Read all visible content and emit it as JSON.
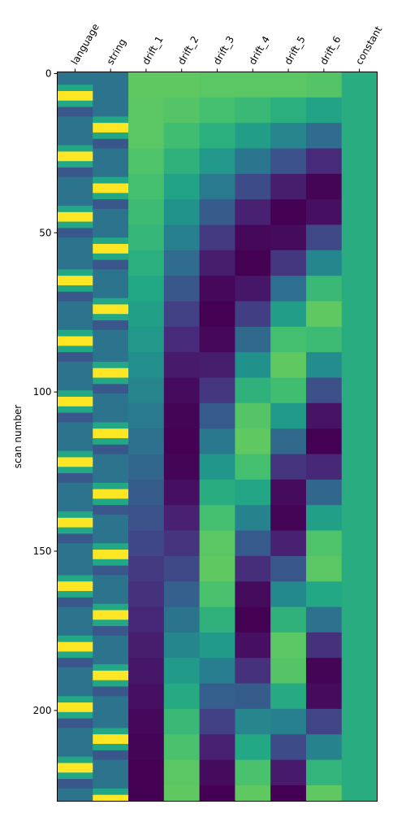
{
  "chart_data": {
    "type": "heatmap",
    "colormap": "viridis",
    "ylabel": "scan number",
    "ylim": [
      -0.5,
      228.5
    ],
    "yticks": [
      0,
      50,
      100,
      150,
      200
    ],
    "series": [
      {
        "name": "language",
        "bins": [
          -0.5,
          3.5,
          5.5,
          8.5,
          10.5,
          13.5,
          22.5,
          24.5,
          27.5,
          29.5,
          32.5,
          41.5,
          43.5,
          46.5,
          48.5,
          51.5,
          61.5,
          63.5,
          66.5,
          68.5,
          71.5,
          80.5,
          82.5,
          85.5,
          87.5,
          90.5,
          99.5,
          101.5,
          104.5,
          106.5,
          109.5,
          118.5,
          120.5,
          123.5,
          125.5,
          128.5,
          137.5,
          139.5,
          142.5,
          144.5,
          147.5,
          157.5,
          159.5,
          162.5,
          164.5,
          167.5,
          176.5,
          178.5,
          181.5,
          183.5,
          186.5,
          195.5,
          197.5,
          200.5,
          202.5,
          205.5,
          214.5,
          216.5,
          219.5,
          221.5,
          224.5,
          228.5
        ],
        "values": [
          0.38,
          0.6,
          1,
          0.6,
          0.27,
          0.38,
          0.6,
          1,
          0.6,
          0.27,
          0.38,
          0.6,
          1,
          0.6,
          0.27,
          0.38,
          0.6,
          1,
          0.6,
          0.27,
          0.38,
          0.6,
          1,
          0.6,
          0.27,
          0.38,
          0.6,
          1,
          0.6,
          0.27,
          0.38,
          0.6,
          1,
          0.6,
          0.27,
          0.38,
          0.6,
          1,
          0.6,
          0.27,
          0.38,
          0.6,
          1,
          0.6,
          0.27,
          0.38,
          0.6,
          1,
          0.6,
          0.27,
          0.38,
          0.6,
          1,
          0.6,
          0.27,
          0.38,
          0.6,
          1,
          0.6,
          0.27,
          0.38
        ]
      },
      {
        "name": "string",
        "bins": [
          -0.5,
          13.5,
          15.5,
          18.5,
          20.5,
          23.5,
          32.5,
          34.5,
          37.5,
          39.5,
          42.5,
          51.5,
          53.5,
          56.5,
          58.5,
          61.5,
          70.5,
          72.5,
          75.5,
          77.5,
          80.5,
          90.5,
          92.5,
          95.5,
          97.5,
          100.5,
          109.5,
          111.5,
          114.5,
          116.5,
          119.5,
          128.5,
          130.5,
          133.5,
          135.5,
          138.5,
          147.5,
          149.5,
          152.5,
          154.5,
          157.5,
          166.5,
          168.5,
          171.5,
          173.5,
          176.5,
          185.5,
          187.5,
          190.5,
          192.5,
          195.5,
          205.5,
          207.5,
          210.5,
          212.5,
          215.5,
          224.5,
          226.5,
          228.5
        ],
        "values": [
          0.38,
          0.6,
          1,
          0.6,
          0.27,
          0.38,
          0.6,
          1,
          0.6,
          0.27,
          0.38,
          0.6,
          1,
          0.6,
          0.27,
          0.38,
          0.6,
          1,
          0.6,
          0.27,
          0.38,
          0.6,
          1,
          0.6,
          0.27,
          0.38,
          0.6,
          1,
          0.6,
          0.27,
          0.38,
          0.6,
          1,
          0.6,
          0.27,
          0.38,
          0.6,
          1,
          0.6,
          0.27,
          0.38,
          0.6,
          1,
          0.6,
          0.27,
          0.38,
          0.6,
          1,
          0.6,
          0.27,
          0.38,
          0.6,
          1,
          0.6,
          0.27,
          0.38,
          0.6,
          1
        ]
      },
      {
        "name": "drift_1",
        "bins": [
          -0.5,
          7.5,
          15.5,
          23.5,
          31.5,
          39.5,
          47.5,
          55.5,
          63.5,
          71.5,
          79.5,
          87.5,
          95.5,
          103.5,
          111.5,
          119.5,
          127.5,
          135.5,
          143.5,
          151.5,
          159.5,
          167.5,
          175.5,
          183.5,
          191.5,
          199.5,
          207.5,
          215.5,
          223.5,
          228.5
        ],
        "values": [
          0.75,
          0.74,
          0.74,
          0.72,
          0.7,
          0.68,
          0.66,
          0.63,
          0.6,
          0.56,
          0.53,
          0.49,
          0.45,
          0.41,
          0.37,
          0.33,
          0.29,
          0.25,
          0.21,
          0.17,
          0.14,
          0.11,
          0.08,
          0.06,
          0.04,
          0.02,
          0.01,
          0,
          0
        ]
      },
      {
        "name": "drift_2",
        "bins": [
          -0.5,
          7.5,
          15.5,
          23.5,
          31.5,
          39.5,
          47.5,
          55.5,
          63.5,
          71.5,
          79.5,
          87.5,
          95.5,
          103.5,
          111.5,
          119.5,
          127.5,
          135.5,
          143.5,
          151.5,
          159.5,
          167.5,
          175.5,
          183.5,
          191.5,
          199.5,
          207.5,
          215.5,
          223.5,
          228.5
        ],
        "values": [
          0.75,
          0.73,
          0.69,
          0.64,
          0.58,
          0.51,
          0.43,
          0.35,
          0.27,
          0.19,
          0.12,
          0.07,
          0.03,
          0.01,
          0,
          0.01,
          0.04,
          0.09,
          0.15,
          0.22,
          0.3,
          0.38,
          0.46,
          0.54,
          0.61,
          0.67,
          0.71,
          0.74,
          0.75
        ]
      },
      {
        "name": "drift_3",
        "bins": [
          -0.5,
          7.5,
          15.5,
          23.5,
          31.5,
          39.5,
          47.5,
          55.5,
          63.5,
          71.5,
          79.5,
          87.5,
          95.5,
          103.5,
          111.5,
          119.5,
          127.5,
          135.5,
          143.5,
          151.5,
          159.5,
          167.5,
          175.5,
          183.5,
          191.5,
          199.5,
          207.5,
          215.5,
          223.5,
          228.5
        ],
        "values": [
          0.74,
          0.7,
          0.63,
          0.53,
          0.41,
          0.29,
          0.17,
          0.08,
          0.02,
          0,
          0.02,
          0.08,
          0.16,
          0.28,
          0.4,
          0.52,
          0.62,
          0.7,
          0.74,
          0.75,
          0.71,
          0.64,
          0.54,
          0.42,
          0.3,
          0.19,
          0.09,
          0.03,
          0
        ]
      },
      {
        "name": "drift_4",
        "bins": [
          -0.5,
          7.5,
          15.5,
          23.5,
          31.5,
          39.5,
          47.5,
          55.5,
          63.5,
          71.5,
          79.5,
          87.5,
          95.5,
          103.5,
          111.5,
          119.5,
          127.5,
          135.5,
          143.5,
          151.5,
          159.5,
          167.5,
          175.5,
          183.5,
          191.5,
          199.5,
          207.5,
          215.5,
          223.5,
          228.5
        ],
        "values": [
          0.74,
          0.67,
          0.55,
          0.39,
          0.23,
          0.09,
          0.02,
          0,
          0.06,
          0.18,
          0.34,
          0.5,
          0.64,
          0.73,
          0.75,
          0.7,
          0.59,
          0.44,
          0.28,
          0.13,
          0.03,
          0,
          0.04,
          0.14,
          0.29,
          0.45,
          0.6,
          0.71,
          0.75
        ]
      },
      {
        "name": "drift_5",
        "bins": [
          -0.5,
          7.5,
          15.5,
          23.5,
          31.5,
          39.5,
          47.5,
          55.5,
          63.5,
          71.5,
          79.5,
          87.5,
          95.5,
          103.5,
          111.5,
          119.5,
          127.5,
          135.5,
          143.5,
          151.5,
          159.5,
          167.5,
          175.5,
          183.5,
          191.5,
          199.5,
          207.5,
          215.5,
          223.5,
          228.5
        ],
        "values": [
          0.74,
          0.63,
          0.45,
          0.25,
          0.08,
          0,
          0.03,
          0.16,
          0.36,
          0.55,
          0.7,
          0.75,
          0.69,
          0.54,
          0.34,
          0.15,
          0.03,
          0.01,
          0.09,
          0.27,
          0.47,
          0.64,
          0.74,
          0.73,
          0.61,
          0.43,
          0.23,
          0.07,
          0
        ]
      },
      {
        "name": "drift_6",
        "bins": [
          -0.5,
          7.5,
          15.5,
          23.5,
          31.5,
          39.5,
          47.5,
          55.5,
          63.5,
          71.5,
          79.5,
          87.5,
          95.5,
          103.5,
          111.5,
          119.5,
          127.5,
          135.5,
          143.5,
          151.5,
          159.5,
          167.5,
          175.5,
          183.5,
          191.5,
          199.5,
          207.5,
          215.5,
          223.5,
          228.5
        ],
        "values": [
          0.73,
          0.58,
          0.35,
          0.12,
          0.01,
          0.04,
          0.22,
          0.46,
          0.67,
          0.75,
          0.68,
          0.48,
          0.24,
          0.05,
          0,
          0.11,
          0.33,
          0.56,
          0.72,
          0.74,
          0.6,
          0.37,
          0.14,
          0.01,
          0.03,
          0.2,
          0.44,
          0.65,
          0.75
        ]
      },
      {
        "name": "constant",
        "bins": [
          -0.5,
          228.5
        ],
        "values": [
          0.62
        ]
      }
    ]
  }
}
